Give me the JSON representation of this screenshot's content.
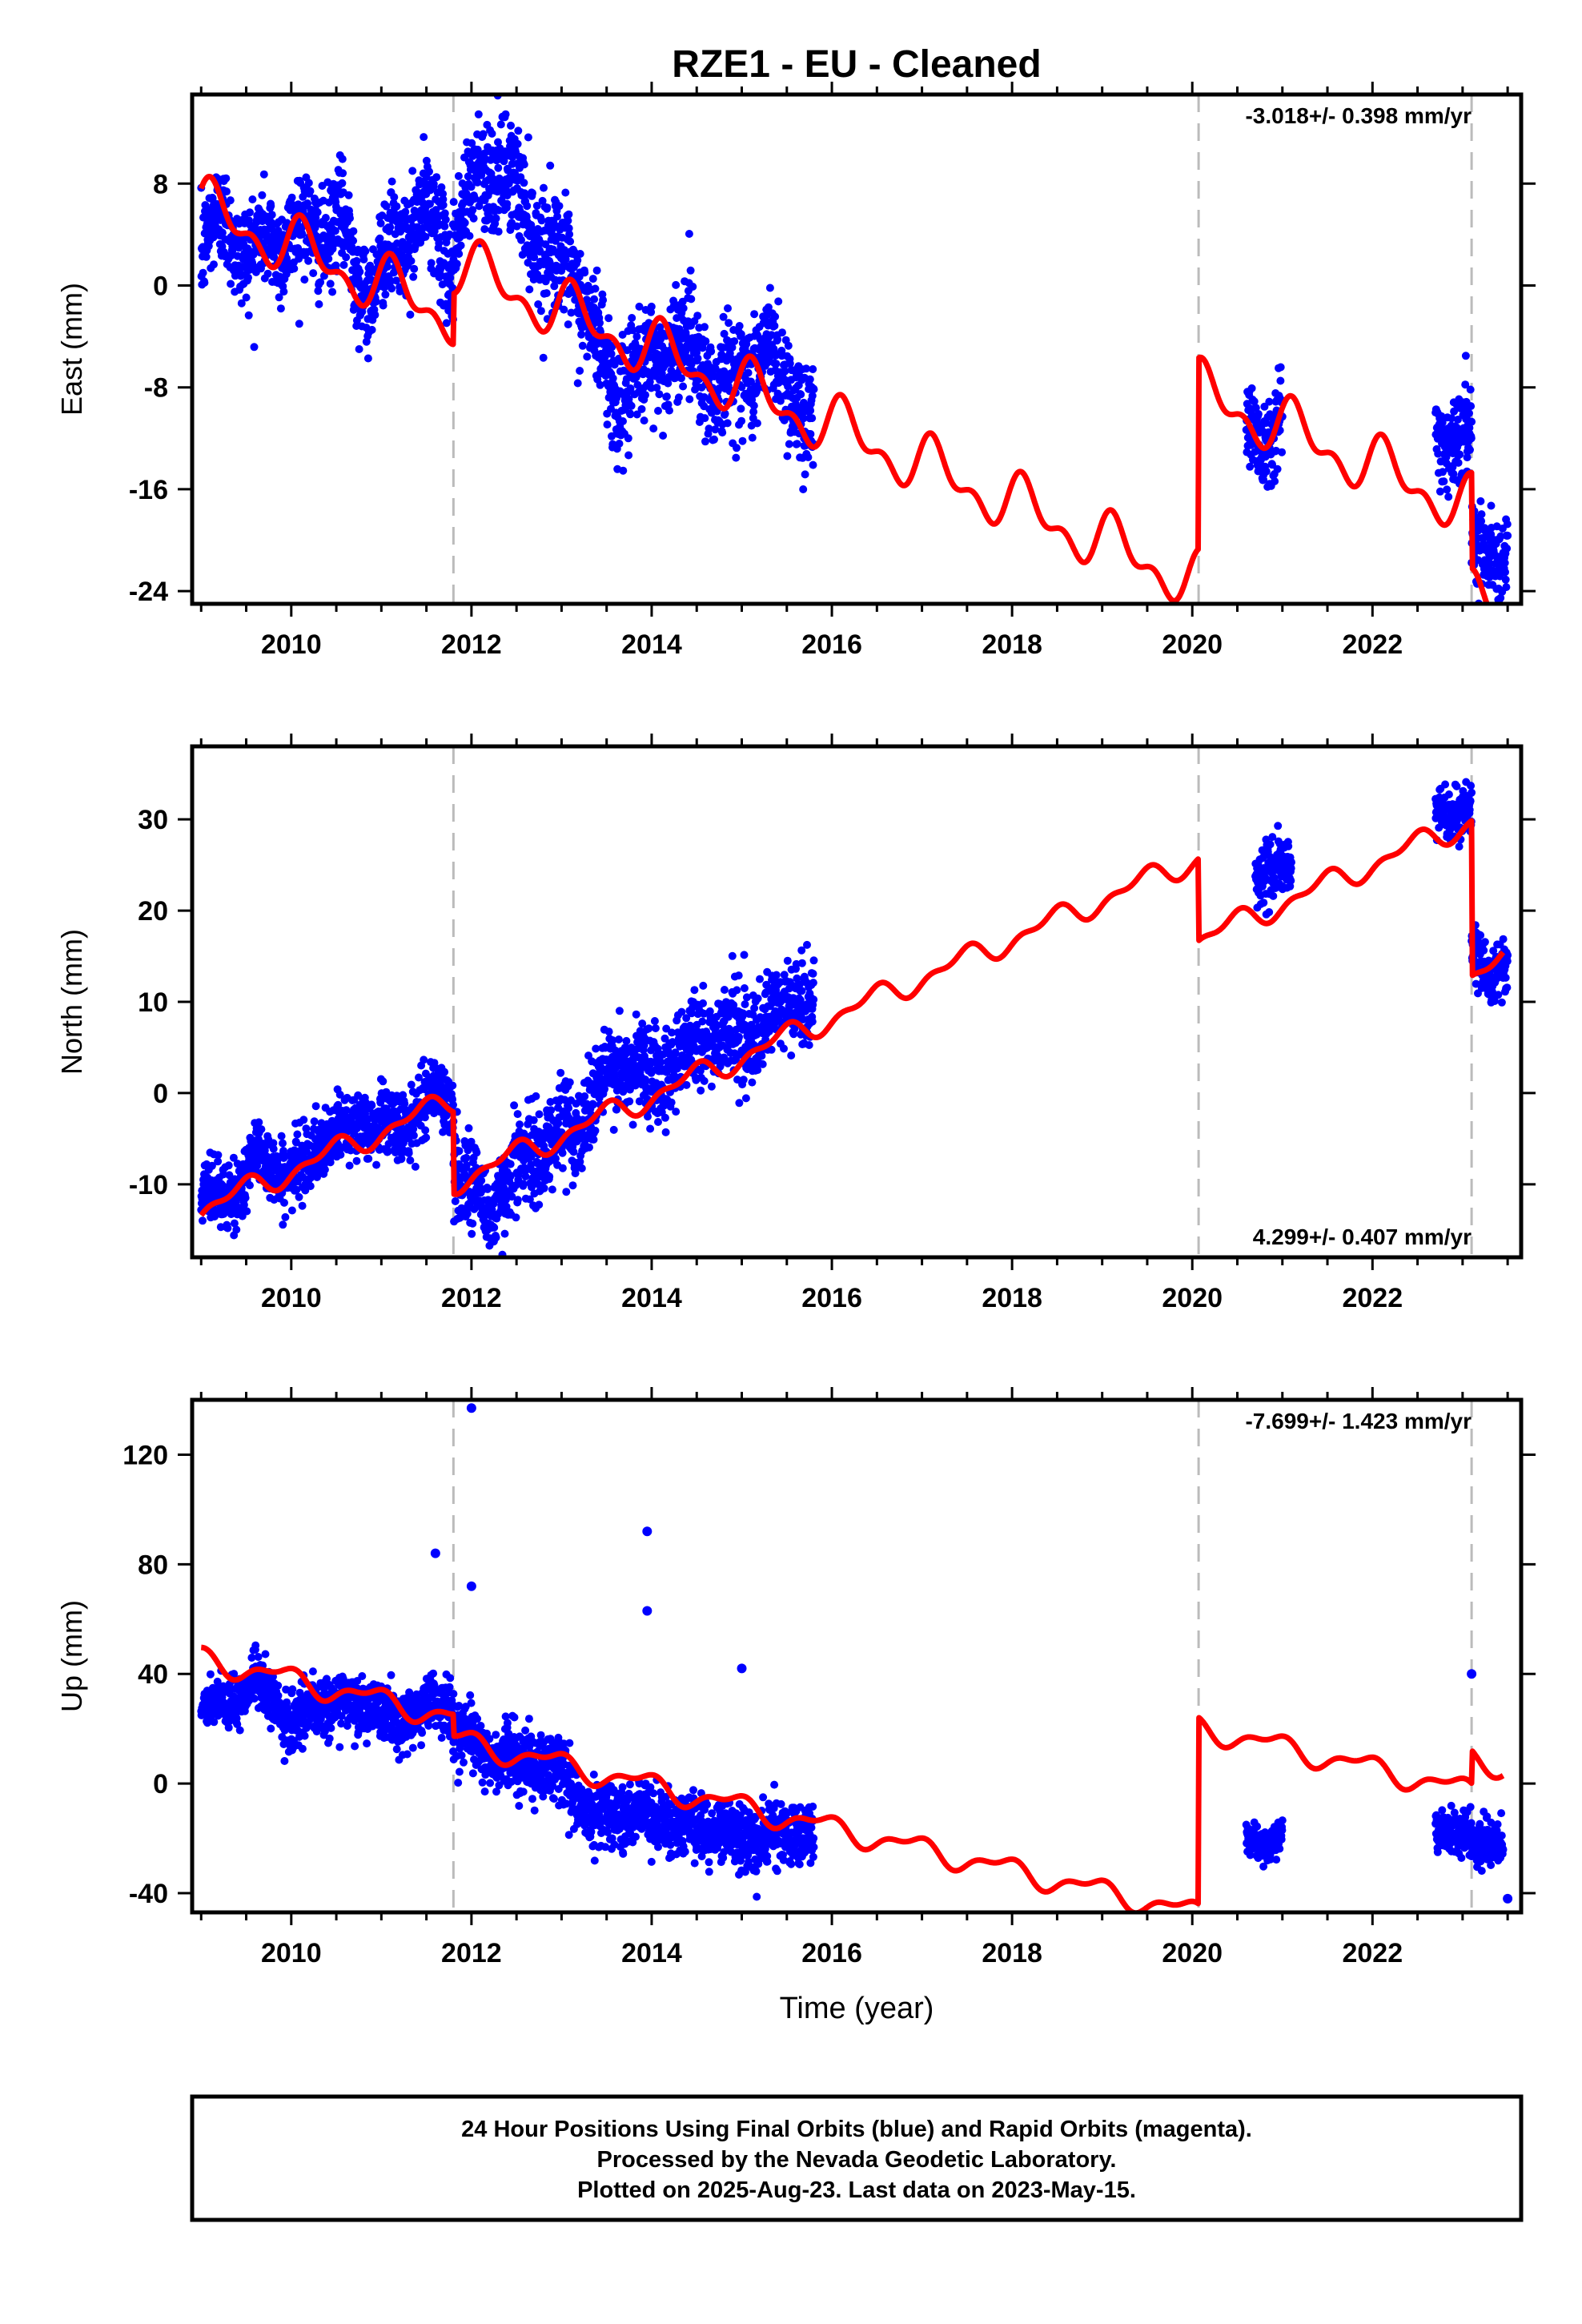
{
  "title": "RZE1  - EU - Cleaned",
  "footer": {
    "lines": [
      "24 Hour Positions Using Final Orbits (blue) and Rapid Orbits (magenta).",
      "Processed by the Nevada Geodetic Laboratory.",
      "Plotted on 2025-Aug-23. Last data on 2023-May-15."
    ]
  },
  "colors": {
    "data_points": "#0000ff",
    "model": "#ff0000",
    "steps": "#bbbbbb",
    "frame": "#000000"
  },
  "chart_data": [
    {
      "type": "scatter",
      "name": "east",
      "ylabel": "East (mm)",
      "xlabel": "",
      "rate_label": "-3.018+/- 0.398 mm/yr",
      "rate_position": "top-right",
      "xlim": [
        2008.9,
        2023.65
      ],
      "ylim": [
        -25,
        15
      ],
      "xticks": [
        2010,
        2012,
        2014,
        2016,
        2018,
        2020,
        2022
      ],
      "yticks": [
        -24,
        -16,
        -8,
        0,
        8
      ],
      "step_lines": [
        2011.8,
        2020.07,
        2023.1
      ],
      "segments": [
        {
          "x": [
            2009.0,
            2009.3,
            2009.6,
            2009.8,
            2010.2,
            2010.5,
            2010.8,
            2011.1,
            2011.4,
            2011.6,
            2011.8
          ],
          "y": [
            3,
            5,
            2,
            4,
            4,
            5,
            0,
            2,
            6,
            4,
            2
          ],
          "amp": 3.0,
          "noise": 2.0
        },
        {
          "x": [
            2011.8,
            2012.1,
            2012.4,
            2012.7,
            2013.0,
            2013.3,
            2013.6,
            2014.0,
            2014.4,
            2014.7,
            2015.0,
            2015.3,
            2015.6,
            2015.8
          ],
          "y": [
            4,
            9,
            9,
            4,
            2,
            -2,
            -9,
            -6,
            -4,
            -8,
            -7,
            -5,
            -9,
            -11
          ],
          "amp": 1.5,
          "noise": 2.2
        },
        {
          "x": [
            2020.6,
            2020.8,
            2021.0
          ],
          "y": [
            -11,
            -12,
            -10
          ],
          "amp": 1.0,
          "noise": 1.8
        },
        {
          "x": [
            2022.7,
            2022.9,
            2023.1
          ],
          "y": [
            -11,
            -13,
            -11
          ],
          "amp": 1.0,
          "noise": 1.8
        },
        {
          "x": [
            2023.1,
            2023.3,
            2023.5
          ],
          "y": [
            -19,
            -21,
            -22
          ],
          "amp": 0.8,
          "noise": 1.5
        }
      ],
      "outliers": [],
      "model": {
        "rate": -3.018,
        "offset": 3.0,
        "t0": 2010.0,
        "annual_sin": 1.5,
        "annual_cos": 1.0,
        "semi_sin": 1.0,
        "semi_cos": 0.6,
        "steps": [
          {
            "t": 2011.8,
            "dy": 4.0
          },
          {
            "t": 2020.07,
            "dy": 15.0
          },
          {
            "t": 2023.1,
            "dy": -7.5
          }
        ],
        "start": 2009.0,
        "end": 2023.45
      }
    },
    {
      "type": "scatter",
      "name": "north",
      "ylabel": "North (mm)",
      "xlabel": "",
      "rate_label": "4.299+/- 0.407 mm/yr",
      "rate_position": "bottom-right",
      "xlim": [
        2008.9,
        2023.65
      ],
      "ylim": [
        -18,
        38
      ],
      "xticks": [
        2010,
        2012,
        2014,
        2016,
        2018,
        2020,
        2022
      ],
      "yticks": [
        -10,
        0,
        10,
        20,
        30
      ],
      "step_lines": [
        2011.8,
        2020.07,
        2023.1
      ],
      "segments": [
        {
          "x": [
            2009.0,
            2009.3,
            2009.6,
            2010.0,
            2010.4,
            2010.8,
            2011.2,
            2011.6,
            2011.8
          ],
          "y": [
            -11,
            -12,
            -7,
            -9,
            -5,
            -3,
            -4,
            0,
            -1
          ],
          "amp": 1.5,
          "noise": 1.8
        },
        {
          "x": [
            2011.8,
            2012.2,
            2012.5,
            2012.8,
            2013.2,
            2013.6,
            2014.0,
            2014.4,
            2014.8,
            2015.2,
            2015.6,
            2015.8
          ],
          "y": [
            -8,
            -13,
            -8,
            -6,
            -3,
            3,
            2,
            5,
            7,
            6,
            11,
            9
          ],
          "amp": 2.0,
          "noise": 2.5
        },
        {
          "x": [
            2020.7,
            2020.9,
            2021.1
          ],
          "y": [
            24,
            25,
            24
          ],
          "amp": 0.8,
          "noise": 1.5
        },
        {
          "x": [
            2022.7,
            2022.9,
            2023.1
          ],
          "y": [
            32,
            30,
            31
          ],
          "amp": 1.0,
          "noise": 1.5
        },
        {
          "x": [
            2023.1,
            2023.3,
            2023.5
          ],
          "y": [
            16,
            13,
            14
          ],
          "amp": 0.8,
          "noise": 1.5
        }
      ],
      "outliers": [],
      "model": {
        "rate": 4.299,
        "offset": -8.5,
        "t0": 2010.0,
        "annual_sin": 0.4,
        "annual_cos": -1.0,
        "semi_sin": 0.5,
        "semi_cos": 0.4,
        "steps": [
          {
            "t": 2011.8,
            "dy": -9.0
          },
          {
            "t": 2020.07,
            "dy": -9.0
          },
          {
            "t": 2023.1,
            "dy": -17.0
          }
        ],
        "start": 2009.0,
        "end": 2023.45
      }
    },
    {
      "type": "scatter",
      "name": "up",
      "ylabel": "Up (mm)",
      "xlabel": "Time (year)",
      "rate_label": "-7.699+/- 1.423 mm/yr",
      "rate_position": "top-right",
      "xlim": [
        2008.9,
        2023.65
      ],
      "ylim": [
        -47,
        140
      ],
      "xticks": [
        2010,
        2012,
        2014,
        2016,
        2018,
        2020,
        2022
      ],
      "yticks": [
        -40,
        0,
        40,
        80,
        120
      ],
      "step_lines": [
        2011.8,
        2020.07,
        2023.1
      ],
      "segments": [
        {
          "x": [
            2009.0,
            2009.3,
            2009.6,
            2010.0,
            2010.4,
            2010.8,
            2011.2,
            2011.6,
            2011.8
          ],
          "y": [
            28,
            27,
            38,
            22,
            30,
            28,
            22,
            30,
            28
          ],
          "amp": 3.0,
          "noise": 5.0
        },
        {
          "x": [
            2011.8,
            2012.2,
            2012.6,
            2013.0,
            2013.3,
            2013.7,
            2014.0,
            2014.4,
            2014.8,
            2015.2,
            2015.6,
            2015.8
          ],
          "y": [
            22,
            10,
            8,
            5,
            -12,
            -10,
            -12,
            -15,
            -18,
            -20,
            -18,
            -20
          ],
          "amp": 4.0,
          "noise": 5.5
        },
        {
          "x": [
            2020.6,
            2020.8,
            2021.0
          ],
          "y": [
            -20,
            -22,
            -20
          ],
          "amp": 1.0,
          "noise": 3.0
        },
        {
          "x": [
            2022.7,
            2022.9,
            2023.1
          ],
          "y": [
            -15,
            -20,
            -18
          ],
          "amp": 2.0,
          "noise": 4.0
        },
        {
          "x": [
            2023.1,
            2023.3,
            2023.45
          ],
          "y": [
            -20,
            -22,
            -25
          ],
          "amp": 1.5,
          "noise": 4.0
        }
      ],
      "outliers": [
        [
          2012.0,
          137
        ],
        [
          2011.6,
          84
        ],
        [
          2012.0,
          72
        ],
        [
          2013.95,
          92
        ],
        [
          2013.95,
          63
        ],
        [
          2015.0,
          42
        ],
        [
          2023.1,
          40
        ],
        [
          2023.5,
          -42
        ]
      ],
      "model": {
        "rate": -7.699,
        "offset": 38.0,
        "t0": 2010.0,
        "annual_sin": -2.0,
        "annual_cos": 3.0,
        "semi_sin": 1.5,
        "semi_cos": 1.0,
        "steps": [
          {
            "t": 2011.8,
            "dy": -8.0
          },
          {
            "t": 2020.07,
            "dy": 68.0
          },
          {
            "t": 2023.1,
            "dy": 12.0
          }
        ],
        "start": 2009.0,
        "end": 2023.45
      }
    }
  ]
}
